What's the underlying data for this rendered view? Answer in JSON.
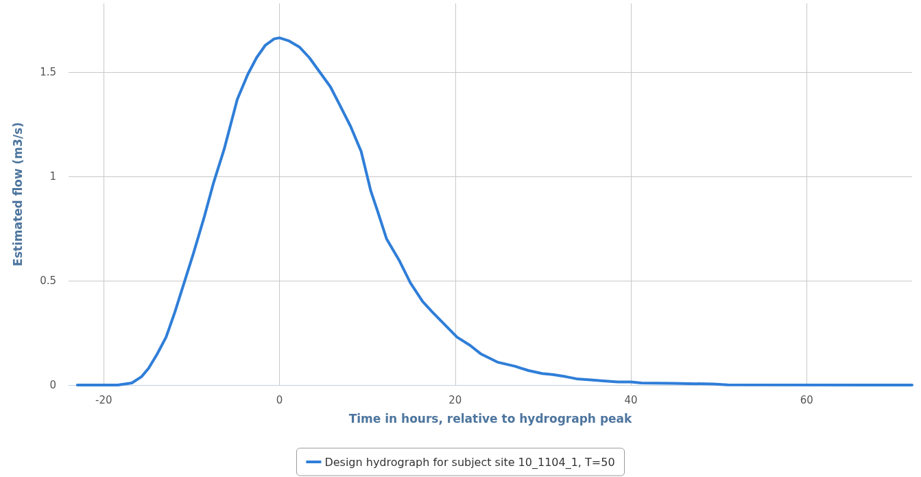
{
  "chart_data": {
    "type": "line",
    "xlabel": "Time in hours, relative to hydrograph peak",
    "ylabel": "Estimated flow (m3/s)",
    "xlim": [
      -24,
      72
    ],
    "xticks": [
      -20,
      0,
      20,
      40,
      60
    ],
    "ylim": [
      0,
      1.83
    ],
    "yticks": [
      0,
      0.5,
      1,
      1.5
    ],
    "grid": true,
    "legend": "bottom",
    "marker": "none",
    "line_style": "solid",
    "series": [
      {
        "name": "Design hydrograph for subject site 10_1104_1, T=50",
        "color": "#2f7ed8",
        "x": [
          -23,
          -18.4,
          -16.8,
          -15.7,
          -14.9,
          -13.9,
          -12.9,
          -11.9,
          -11,
          -9.8,
          -8.6,
          -7.5,
          -6.3,
          -4.8,
          -3.6,
          -2.6,
          -1.6,
          -0.6,
          0,
          1.1,
          2.3,
          3.4,
          4.6,
          5.8,
          6.9,
          8.1,
          9.3,
          10.4,
          11.2,
          12.2,
          13.6,
          14.9,
          16.3,
          17.4,
          18.8,
          20.2,
          21.7,
          22.9,
          24.8,
          26.8,
          28.3,
          29.9,
          31.1,
          32.6,
          33.8,
          35.4,
          36.9,
          38.5,
          40,
          41.2,
          44.7,
          49.4,
          51,
          72
        ],
        "values": [
          0,
          0,
          0.01,
          0.04,
          0.08,
          0.15,
          0.23,
          0.35,
          0.47,
          0.63,
          0.8,
          0.97,
          1.13,
          1.37,
          1.49,
          1.57,
          1.63,
          1.66,
          1.665,
          1.65,
          1.62,
          1.57,
          1.5,
          1.43,
          1.34,
          1.24,
          1.12,
          0.93,
          0.83,
          0.7,
          0.6,
          0.49,
          0.4,
          0.35,
          0.29,
          0.23,
          0.19,
          0.15,
          0.11,
          0.09,
          0.07,
          0.055,
          0.05,
          0.04,
          0.03,
          0.025,
          0.02,
          0.015,
          0.015,
          0.01,
          0.008,
          0.005,
          0.001,
          0
        ]
      }
    ]
  }
}
